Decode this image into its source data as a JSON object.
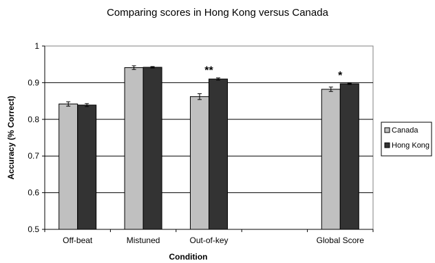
{
  "chart_data": {
    "type": "bar",
    "title": "Comparing scores in Hong Kong versus Canada",
    "xlabel": "Condition",
    "ylabel": "Accuracy (% Correct)",
    "ylim": [
      0.5,
      1
    ],
    "yticks": [
      0.5,
      0.6,
      0.7,
      0.8,
      0.9,
      1
    ],
    "ytick_labels": [
      "0.5",
      "0.6",
      "0.7",
      "0.8",
      "0.9",
      "1"
    ],
    "grid": true,
    "legend_position": "right",
    "categories": [
      "Off-beat",
      "Mistuned",
      "Out-of-key",
      "",
      "Global Score"
    ],
    "series": [
      {
        "name": "Canada",
        "color": "#c0c0c0",
        "values": [
          0.842,
          0.941,
          0.862,
          null,
          0.882
        ],
        "errors": [
          0.006,
          0.005,
          0.008,
          null,
          0.006
        ]
      },
      {
        "name": "Hong Kong",
        "color": "#333333",
        "values": [
          0.839,
          0.942,
          0.91,
          null,
          0.897
        ],
        "errors": [
          0.004,
          0.002,
          0.003,
          null,
          0.002
        ]
      }
    ],
    "annotations": [
      {
        "text": "**",
        "category_index": 2
      },
      {
        "text": "*",
        "category_index": 4
      }
    ]
  }
}
